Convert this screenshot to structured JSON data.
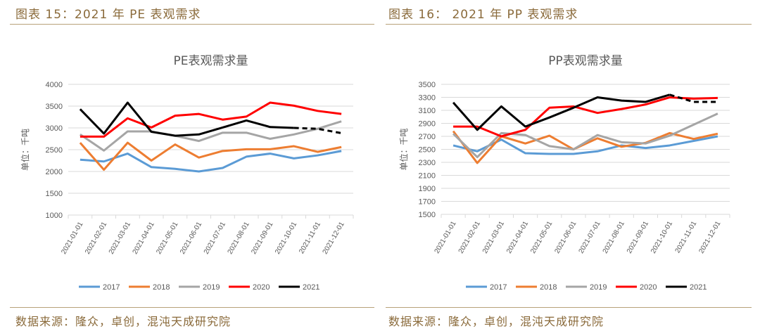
{
  "headers": {
    "left": "图表 15：2021 年 PE 表观需求",
    "right": "图表 16： 2021 年 PP 表观需求"
  },
  "footers": {
    "left": "数据来源：隆众，卓创，混沌天成研究院",
    "right": "数据来源：隆众，卓创，混沌天成研究院"
  },
  "colors": {
    "2017": "#5b9bd5",
    "2018": "#ed7d31",
    "2019": "#a5a5a5",
    "2020": "#ff0000",
    "2021": "#000000"
  },
  "chart_data": [
    {
      "type": "line",
      "title": "PE表观需求量",
      "ylabel": "单位：千吨",
      "ylim": [
        1000,
        4000
      ],
      "yticks": [
        1000,
        1500,
        2000,
        2500,
        3000,
        3500,
        4000
      ],
      "grid": true,
      "legend": "bottom",
      "categories": [
        "2021-01-01",
        "2021-02-01",
        "2021-03-01",
        "2021-04-01",
        "2021-05-01",
        "2021-06-01",
        "2021-07-01",
        "2021-08-01",
        "2021-09-01",
        "2021-10-01",
        "2021-11-01",
        "2021-12-01"
      ],
      "series": [
        {
          "name": "2017",
          "values": [
            2270,
            2230,
            2410,
            2100,
            2060,
            2000,
            2080,
            2340,
            2410,
            2300,
            2370,
            2470
          ]
        },
        {
          "name": "2018",
          "values": [
            2660,
            2040,
            2660,
            2250,
            2620,
            2320,
            2470,
            2510,
            2510,
            2580,
            2450,
            2560
          ]
        },
        {
          "name": "2019",
          "values": [
            2850,
            2480,
            2920,
            2920,
            2820,
            2700,
            2890,
            2890,
            2750,
            2850,
            2980,
            3150
          ]
        },
        {
          "name": "2020",
          "values": [
            2800,
            2800,
            3220,
            3010,
            3280,
            3320,
            3190,
            3260,
            3580,
            3510,
            3390,
            3320
          ]
        },
        {
          "name": "2021",
          "values": [
            3430,
            2870,
            3580,
            2910,
            2820,
            2850,
            3010,
            3170,
            3020,
            3000,
            2980,
            2880
          ],
          "dashed_from_index": 9
        }
      ]
    },
    {
      "type": "line",
      "title": "PP表观需求量",
      "ylabel": "单位：千吨",
      "ylim": [
        1500,
        3500
      ],
      "yticks": [
        1500,
        1700,
        1900,
        2100,
        2300,
        2500,
        2700,
        2900,
        3100,
        3300,
        3500
      ],
      "grid": true,
      "legend": "bottom",
      "categories": [
        "2021-01-01",
        "2021-02-01",
        "2021-03-01",
        "2021-04-01",
        "2021-05-01",
        "2021-06-01",
        "2021-07-01",
        "2021-08-01",
        "2021-09-01",
        "2021-10-01",
        "2021-11-01",
        "2021-12-01"
      ],
      "series": [
        {
          "name": "2017",
          "values": [
            2560,
            2470,
            2650,
            2440,
            2430,
            2430,
            2470,
            2560,
            2520,
            2560,
            2630,
            2700
          ]
        },
        {
          "name": "2018",
          "values": [
            2780,
            2290,
            2700,
            2590,
            2710,
            2500,
            2670,
            2540,
            2600,
            2750,
            2660,
            2740
          ]
        },
        {
          "name": "2019",
          "values": [
            2740,
            2380,
            2750,
            2720,
            2550,
            2500,
            2720,
            2610,
            2590,
            2710,
            2880,
            3050
          ]
        },
        {
          "name": "2020",
          "values": [
            2850,
            2850,
            2700,
            2800,
            3140,
            3160,
            3060,
            3120,
            3190,
            3300,
            3280,
            3290
          ]
        },
        {
          "name": "2021",
          "values": [
            3220,
            2800,
            3160,
            2850,
            2990,
            3140,
            3300,
            3250,
            3230,
            3340,
            3230,
            3230
          ],
          "dashed_from_index": 9
        }
      ]
    }
  ]
}
